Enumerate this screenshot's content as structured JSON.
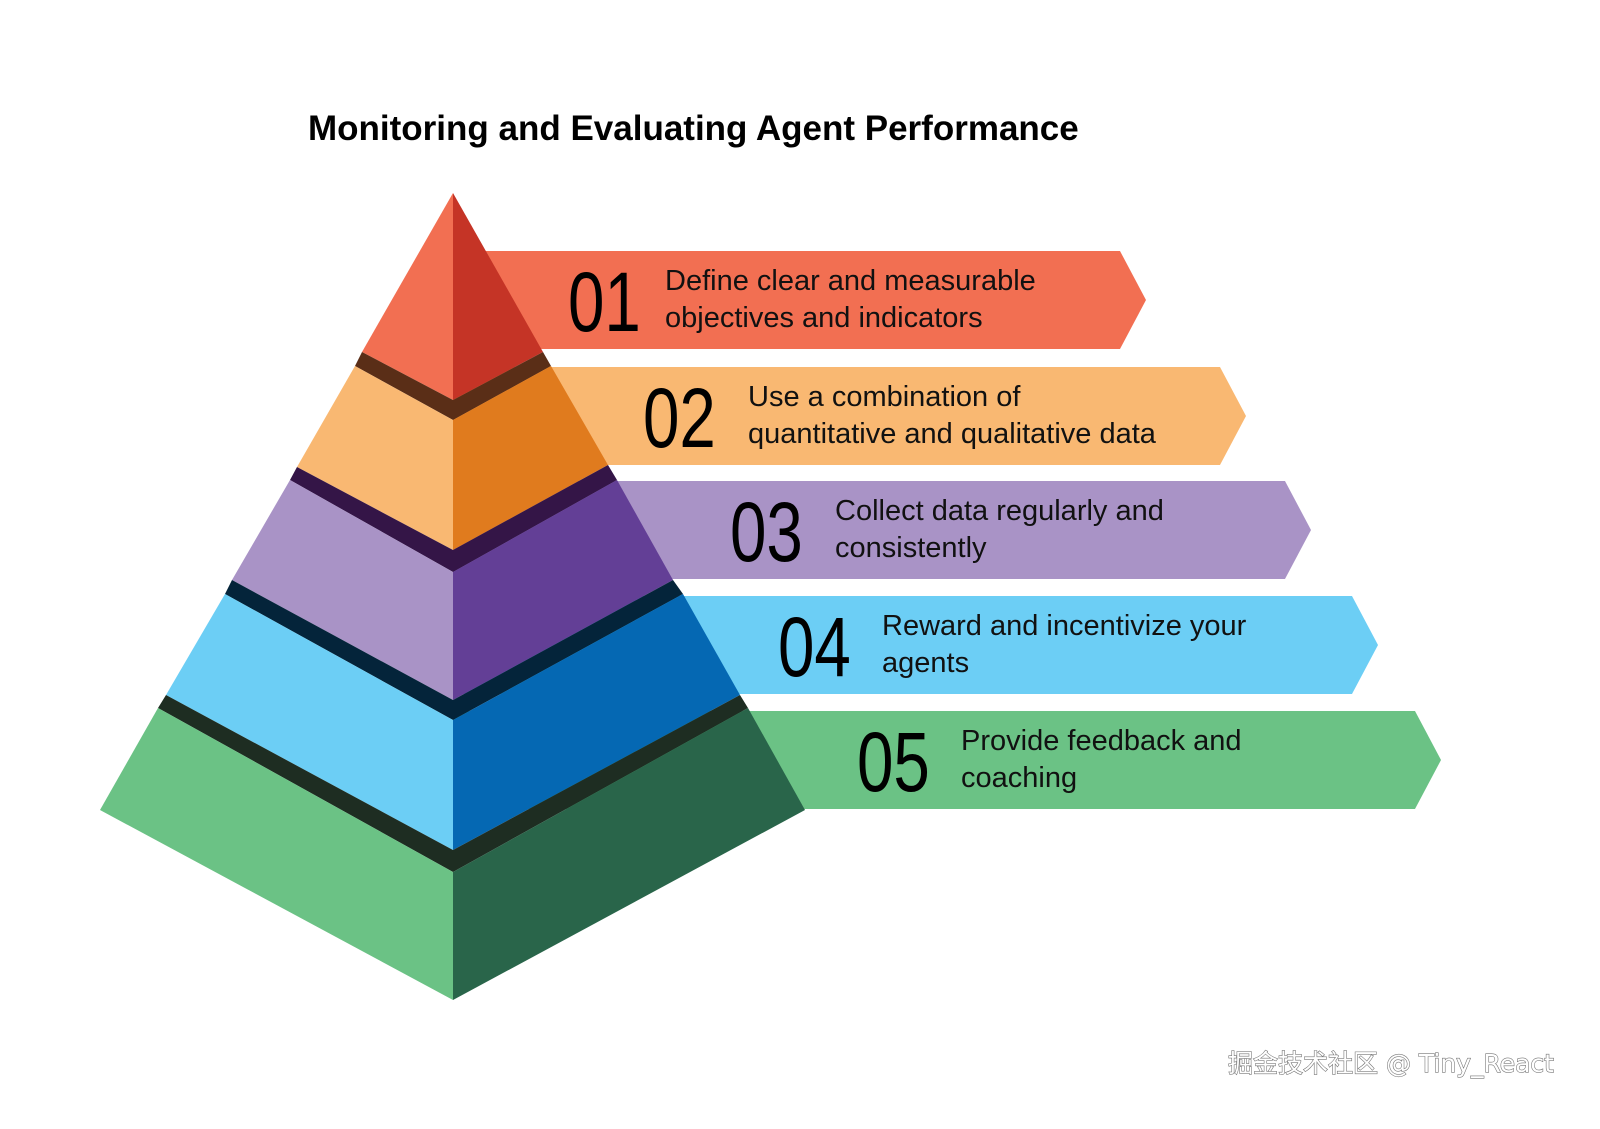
{
  "title": "Monitoring and Evaluating Agent Performance",
  "steps": [
    {
      "number": "01",
      "line1": "Define clear and measurable",
      "line2": "objectives and indicators",
      "color": "#F26F52",
      "dark": "#C53426",
      "band": "#5A2E17"
    },
    {
      "number": "02",
      "line1": "Use a combination of",
      "line2": "quantitative and qualitative data",
      "color": "#F9B872",
      "dark": "#E07B1E",
      "band": "#341547"
    },
    {
      "number": "03",
      "line1": "Collect data regularly and",
      "line2": "consistently",
      "color": "#A993C6",
      "dark": "#633F96",
      "band": "#04243A"
    },
    {
      "number": "04",
      "line1": "Reward and incentivize your",
      "line2": "agents",
      "color": "#6CCEF5",
      "dark": "#0568B3",
      "band": "#1E2D22"
    },
    {
      "number": "05",
      "line1": "Provide feedback and",
      "line2": "coaching",
      "color": "#6BC285",
      "dark": "#29654A"
    }
  ],
  "watermark": "掘金技术社区 @ Tiny_React"
}
